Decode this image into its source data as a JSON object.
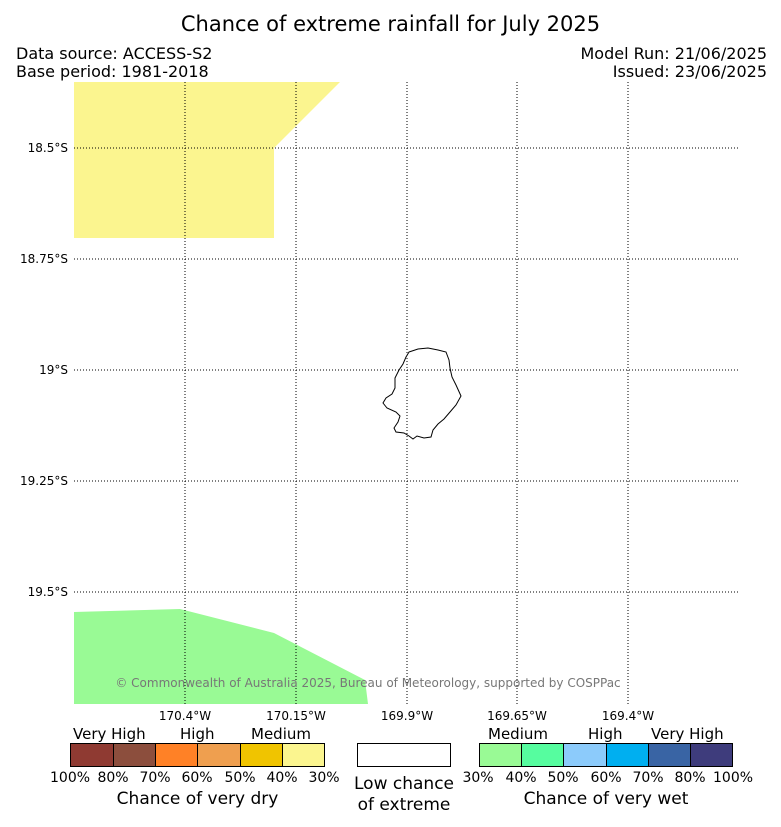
{
  "title": "Chance of extreme rainfall for July 2025",
  "data_source": "Data source: ACCESS-S2",
  "base_period": "Base period: 1981-2018",
  "model_run": "Model Run: 21/06/2025",
  "issued": "Issued: 23/06/2025",
  "copyright": "© Commonwealth of Australia 2025, Bureau of Meteorology, supported by COSPPac",
  "lat_labels": [
    "18.5°S",
    "18.75°S",
    "19°S",
    "19.25°S",
    "19.5°S"
  ],
  "lon_labels": [
    "170.4°W",
    "170.15°W",
    "169.9°W",
    "169.65°W",
    "169.4°W"
  ],
  "regions": [
    {
      "category": "very-dry-30-40",
      "color": "#fbf58f"
    },
    {
      "category": "very-wet-30-40",
      "color": "#99fa95"
    }
  ],
  "legend": {
    "dry": {
      "categories": [
        "Very High",
        "High",
        "Medium"
      ],
      "colors": [
        "#8f3a32",
        "#8c4e3d",
        "#ff8126",
        "#ef9f4f",
        "#f0c400",
        "#fbf58f"
      ],
      "ticks": [
        "100%",
        "80%",
        "70%",
        "60%",
        "50%",
        "40%",
        "30%"
      ],
      "caption": "Chance of very dry"
    },
    "neutral": {
      "caption_line1": "Low chance",
      "caption_line2": "of extreme"
    },
    "wet": {
      "categories": [
        "Medium",
        "High",
        "Very High"
      ],
      "colors": [
        "#99fa95",
        "#56fd9f",
        "#8ccbfb",
        "#00aff0",
        "#3964a4",
        "#3e3c7c"
      ],
      "ticks": [
        "30%",
        "40%",
        "50%",
        "60%",
        "70%",
        "80%",
        "100%"
      ],
      "caption": "Chance of very wet"
    }
  }
}
